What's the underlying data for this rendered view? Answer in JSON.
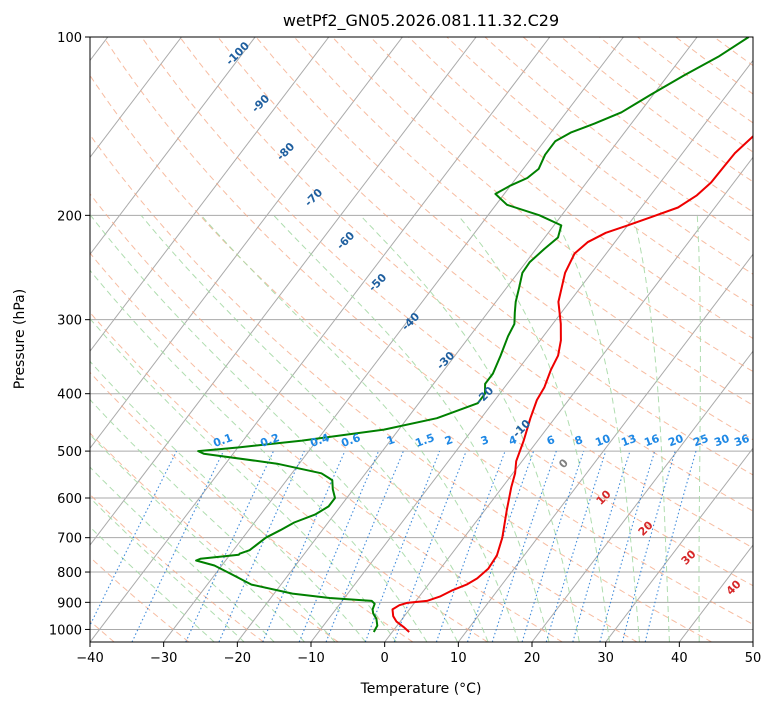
{
  "chart_data": {
    "type": "line",
    "subtype": "skew-t log-p",
    "title": "wetPf2_GN05.2026.081.11.32.C29",
    "xlabel": "Temperature (°C)",
    "ylabel": "Pressure (hPa)",
    "xlim": [
      -40,
      50
    ],
    "ylim": [
      1050,
      100
    ],
    "y_scale": "log",
    "x_ticks": [
      -40,
      -30,
      -20,
      -10,
      0,
      10,
      20,
      30,
      40,
      50
    ],
    "x_tick_labels": [
      "−40",
      "−30",
      "−20",
      "−10",
      "0",
      "10",
      "20",
      "30",
      "40",
      "50"
    ],
    "y_ticks": [
      1000,
      900,
      800,
      700,
      600,
      500,
      400,
      300,
      200,
      100
    ],
    "y_tick_labels": [
      "1000",
      "900",
      "800",
      "700",
      "600",
      "500",
      "400",
      "300",
      "200",
      "100"
    ],
    "grid": true,
    "background_lines": {
      "isotherms_color": "#aaaaaa",
      "dry_adiabats_color": "#f4a582",
      "moist_adiabats_color": "#a6d9a6",
      "mixing_ratio_color": "#1f77d4"
    },
    "isotherm_labels": [
      "-100",
      "-90",
      "-80",
      "-70",
      "-60",
      "-50",
      "-40",
      "-30",
      "-20",
      "-10",
      "0",
      "10",
      "20",
      "30",
      "40"
    ],
    "isotherm_label_colors": {
      "cold": "#1f5f9f",
      "zero": "#808080",
      "warm": "#d62728"
    },
    "mixing_ratio_labels": [
      "0.1",
      "0.2",
      "0.4",
      "0.6",
      "1",
      "1.5",
      "2",
      "3",
      "4",
      "6",
      "8",
      "10",
      "13",
      "16",
      "20",
      "25",
      "30",
      "36"
    ],
    "mixing_ratio_label_color": "#1e88e5",
    "series": [
      {
        "color": "#ee0000",
        "points": [
          [
            2.3,
            1010
          ],
          [
            1.0,
            990
          ],
          [
            -0.5,
            970
          ],
          [
            -1.5,
            950
          ],
          [
            -2.3,
            925
          ],
          [
            -1.8,
            910
          ],
          [
            -1.0,
            902
          ],
          [
            1.5,
            895
          ],
          [
            2.8,
            880
          ],
          [
            3.8,
            860
          ],
          [
            5.2,
            840
          ],
          [
            6.0,
            820
          ],
          [
            6.5,
            790
          ],
          [
            6.3,
            750
          ],
          [
            5.2,
            700
          ],
          [
            3.0,
            630
          ],
          [
            1.2,
            575
          ],
          [
            0.3,
            545
          ],
          [
            -0.8,
            520
          ],
          [
            -1.9,
            480
          ],
          [
            -3.3,
            440
          ],
          [
            -4.3,
            410
          ],
          [
            -4.6,
            390
          ],
          [
            -5.5,
            365
          ],
          [
            -6.0,
            345
          ],
          [
            -7.2,
            325
          ],
          [
            -8.9,
            305
          ],
          [
            -11.5,
            280
          ],
          [
            -13.6,
            250
          ],
          [
            -14.3,
            232
          ],
          [
            -13.7,
            222
          ],
          [
            -12.2,
            214
          ],
          [
            -10.0,
            208
          ],
          [
            -7.5,
            201
          ],
          [
            -5.0,
            194
          ],
          [
            -3.7,
            185
          ],
          [
            -3.1,
            176
          ],
          [
            -3.0,
            166
          ],
          [
            -2.9,
            157
          ],
          [
            -2.0,
            145
          ],
          [
            -1.8,
            137
          ],
          [
            -1.8,
            130
          ],
          [
            -2.2,
            124
          ],
          [
            -1.5,
            116
          ],
          [
            -0.5,
            110
          ],
          [
            0.5,
            105
          ],
          [
            1.2,
            100
          ]
        ]
      },
      {
        "color": "#008000",
        "points": [
          [
            -2.5,
            1010
          ],
          [
            -2.7,
            985
          ],
          [
            -3.5,
            960
          ],
          [
            -4.5,
            940
          ],
          [
            -5.0,
            925
          ],
          [
            -5.3,
            905
          ],
          [
            -6.0,
            895
          ],
          [
            -12.0,
            885
          ],
          [
            -17.5,
            870
          ],
          [
            -24.0,
            840
          ],
          [
            -28.0,
            805
          ],
          [
            -31.0,
            780
          ],
          [
            -34.0,
            765
          ],
          [
            -33.6,
            760
          ],
          [
            -28.8,
            748
          ],
          [
            -28.8,
            745
          ],
          [
            -27.8,
            735
          ],
          [
            -26.9,
            700
          ],
          [
            -25.7,
            680
          ],
          [
            -24.6,
            660
          ],
          [
            -22.6,
            640
          ],
          [
            -21.6,
            620
          ],
          [
            -21.6,
            600
          ],
          [
            -22.8,
            580
          ],
          [
            -23.8,
            560
          ],
          [
            -24.5,
            555
          ],
          [
            -26.0,
            545
          ],
          [
            -33.0,
            525
          ],
          [
            -44.0,
            505
          ],
          [
            -45.0,
            500
          ],
          [
            -40.0,
            493
          ],
          [
            -32.0,
            480
          ],
          [
            -22.0,
            460
          ],
          [
            -16.0,
            440
          ],
          [
            -12.0,
            415
          ],
          [
            -12.0,
            400
          ],
          [
            -13.0,
            385
          ],
          [
            -13.0,
            370
          ],
          [
            -13.8,
            345
          ],
          [
            -14.8,
            320
          ],
          [
            -15.2,
            305
          ],
          [
            -16.3,
            292
          ],
          [
            -17.3,
            280
          ],
          [
            -18.3,
            265
          ],
          [
            -19.4,
            250
          ],
          [
            -19.5,
            240
          ],
          [
            -18.9,
            228
          ],
          [
            -18.2,
            218
          ],
          [
            -19.0,
            208
          ],
          [
            -23.0,
            200
          ],
          [
            -28.5,
            192
          ],
          [
            -31.2,
            184
          ],
          [
            -30.0,
            178
          ],
          [
            -28.5,
            173
          ],
          [
            -27.9,
            167
          ],
          [
            -28.5,
            158
          ],
          [
            -28.5,
            150
          ],
          [
            -27.3,
            145
          ],
          [
            -25.0,
            140
          ],
          [
            -22.5,
            134
          ],
          [
            -20.3,
            125
          ],
          [
            -17.8,
            116
          ],
          [
            -15.1,
            108
          ],
          [
            -13.0,
            100
          ]
        ]
      }
    ]
  }
}
